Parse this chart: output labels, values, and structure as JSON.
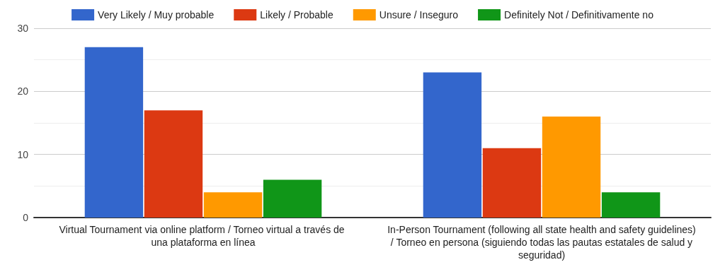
{
  "chart_data": {
    "type": "bar",
    "categories": [
      "Virtual Tournament via online platform / Torneo virtual a través de una plataforma en línea",
      "In-Person Tournament (following all state health and safety guidelines) / Torneo en persona (siguiendo todas las pautas estatales de salud y seguridad)"
    ],
    "series": [
      {
        "name": "Very Likely / Muy probable",
        "color": "#3366cc",
        "values": [
          27,
          23
        ]
      },
      {
        "name": "Likely / Probable",
        "color": "#dc3912",
        "values": [
          17,
          11
        ]
      },
      {
        "name": "Unsure / Inseguro",
        "color": "#ff9900",
        "values": [
          4,
          16
        ]
      },
      {
        "name": "Definitely Not / Definitivamente no",
        "color": "#109618",
        "values": [
          6,
          4
        ]
      }
    ],
    "ylim": [
      0,
      30
    ],
    "yticks": [
      0,
      10,
      20,
      30
    ],
    "grid": "y",
    "legend": "top"
  }
}
